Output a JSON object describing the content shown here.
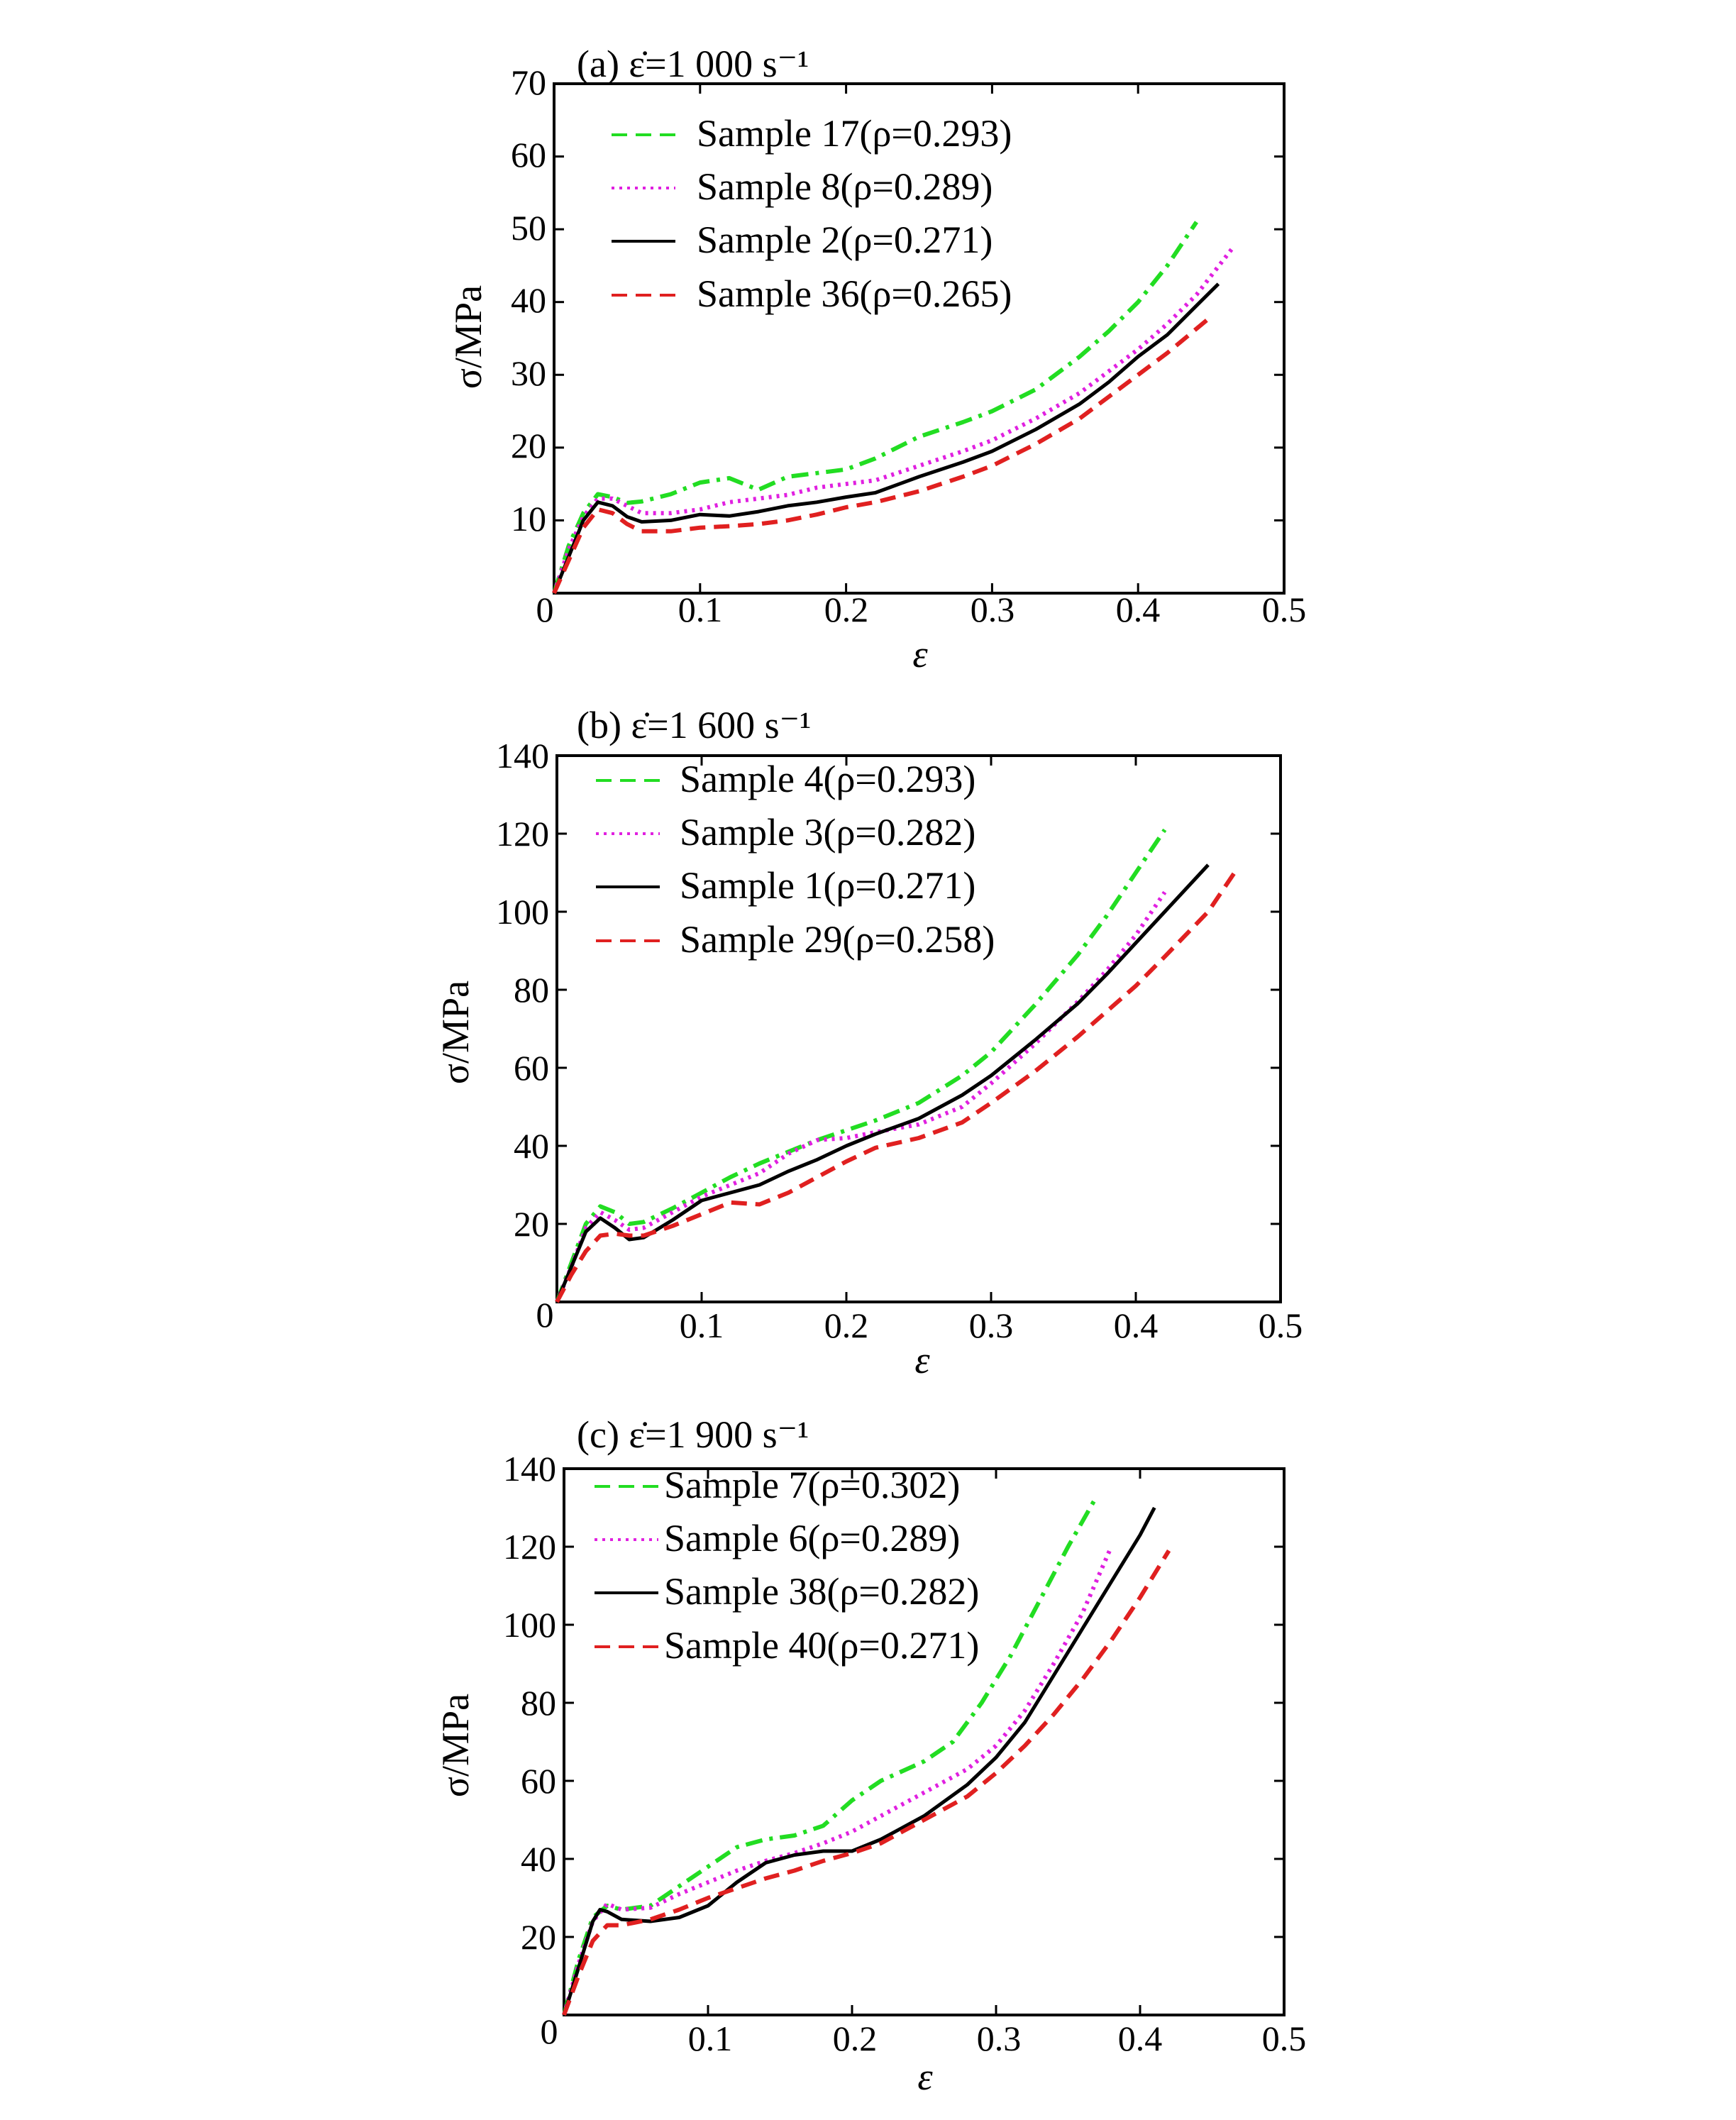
{
  "chart_data": [
    {
      "type": "line",
      "title": "(a) ε̇=1 000 s⁻¹",
      "xlabel": "ε",
      "ylabel": "σ/MPa",
      "xlim": [
        0,
        0.5
      ],
      "ylim": [
        0,
        70
      ],
      "xticks": [
        "0",
        "0.1",
        "0.2",
        "0.3",
        "0.4",
        "0.5"
      ],
      "yticks": [
        "0",
        "10",
        "20",
        "30",
        "40",
        "50",
        "60",
        "70"
      ],
      "grid": false,
      "legend_position": "top-left",
      "series": [
        {
          "name": "Sample 17(ρ=0.293)",
          "color": "#22dd22",
          "style": "dashdot",
          "x": [
            0,
            0.01,
            0.02,
            0.03,
            0.04,
            0.05,
            0.06,
            0.08,
            0.1,
            0.12,
            0.14,
            0.16,
            0.18,
            0.2,
            0.22,
            0.25,
            0.28,
            0.3,
            0.33,
            0.36,
            0.38,
            0.4,
            0.42,
            0.44
          ],
          "y": [
            0,
            6.5,
            11,
            13.6,
            13.2,
            12.4,
            12.6,
            13.6,
            15.2,
            15.8,
            14.2,
            16,
            16.5,
            17,
            18.5,
            21.5,
            23.5,
            25,
            28,
            32.5,
            36,
            40,
            45,
            51
          ]
        },
        {
          "name": "Sample 8(ρ=0.289)",
          "color": "#e020e0",
          "style": "dotted",
          "x": [
            0,
            0.01,
            0.02,
            0.03,
            0.04,
            0.05,
            0.06,
            0.08,
            0.1,
            0.12,
            0.14,
            0.16,
            0.18,
            0.2,
            0.22,
            0.25,
            0.28,
            0.3,
            0.33,
            0.36,
            0.38,
            0.4,
            0.42,
            0.44,
            0.465
          ],
          "y": [
            0,
            6,
            10.5,
            13,
            13,
            12,
            11,
            11,
            11.5,
            12.5,
            13,
            13.5,
            14.5,
            15,
            15.5,
            17.5,
            19.5,
            21,
            24,
            27.5,
            30.5,
            33.5,
            37,
            41,
            47.5
          ]
        },
        {
          "name": "Sample 2(ρ=0.271)",
          "color": "#000000",
          "style": "solid",
          "x": [
            0,
            0.01,
            0.02,
            0.03,
            0.04,
            0.05,
            0.06,
            0.08,
            0.1,
            0.12,
            0.14,
            0.16,
            0.18,
            0.2,
            0.22,
            0.25,
            0.28,
            0.3,
            0.33,
            0.36,
            0.38,
            0.4,
            0.42,
            0.44,
            0.455
          ],
          "y": [
            0,
            5,
            10,
            12.5,
            12,
            10.5,
            9.8,
            10,
            10.8,
            10.6,
            11.2,
            12,
            12.5,
            13.2,
            13.8,
            16,
            18,
            19.5,
            22.5,
            26,
            29,
            32.5,
            35.5,
            39.5,
            42.5
          ]
        },
        {
          "name": "Sample 36(ρ=0.265)",
          "color": "#e02020",
          "style": "dashed",
          "x": [
            0,
            0.01,
            0.02,
            0.03,
            0.04,
            0.05,
            0.06,
            0.08,
            0.1,
            0.12,
            0.14,
            0.16,
            0.18,
            0.2,
            0.22,
            0.25,
            0.28,
            0.3,
            0.33,
            0.36,
            0.38,
            0.4,
            0.42,
            0.45
          ],
          "y": [
            0,
            4.5,
            9,
            11.5,
            11,
            9.5,
            8.5,
            8.5,
            9,
            9.2,
            9.5,
            10,
            10.8,
            11.8,
            12.5,
            14,
            16,
            17.5,
            20.5,
            24,
            27,
            30,
            33,
            38
          ]
        }
      ]
    },
    {
      "type": "line",
      "title": "(b) ε̇=1 600 s⁻¹",
      "xlabel": "ε",
      "ylabel": "σ/MPa",
      "xlim": [
        0,
        0.5
      ],
      "ylim": [
        0,
        140
      ],
      "xticks": [
        "0",
        "0.1",
        "0.2",
        "0.3",
        "0.4",
        "0.5"
      ],
      "yticks": [
        "0",
        "20",
        "40",
        "60",
        "80",
        "100",
        "120",
        "140"
      ],
      "grid": false,
      "legend_position": "top-left",
      "series": [
        {
          "name": "Sample 4(ρ=0.293)",
          "color": "#22dd22",
          "style": "dashdot",
          "x": [
            0,
            0.01,
            0.02,
            0.03,
            0.04,
            0.05,
            0.06,
            0.08,
            0.1,
            0.12,
            0.14,
            0.16,
            0.18,
            0.2,
            0.22,
            0.25,
            0.28,
            0.3,
            0.33,
            0.36,
            0.38,
            0.4,
            0.42
          ],
          "y": [
            0,
            10,
            20,
            24.5,
            23,
            20,
            20.5,
            24,
            28,
            32,
            35.5,
            38.5,
            41.5,
            44,
            46.5,
            51,
            58,
            64,
            76,
            89,
            99,
            110,
            121
          ]
        },
        {
          "name": "Sample 3(ρ=0.282)",
          "color": "#e020e0",
          "style": "dotted",
          "x": [
            0,
            0.01,
            0.02,
            0.03,
            0.04,
            0.05,
            0.06,
            0.08,
            0.1,
            0.12,
            0.14,
            0.16,
            0.18,
            0.2,
            0.22,
            0.25,
            0.28,
            0.3,
            0.33,
            0.36,
            0.38,
            0.4,
            0.42
          ],
          "y": [
            0,
            9,
            19,
            23,
            21,
            18.5,
            19,
            23,
            27,
            30,
            33,
            38,
            41.5,
            42,
            43.5,
            45.5,
            50,
            56,
            66,
            77,
            85,
            94,
            105
          ]
        },
        {
          "name": "Sample 1(ρ=0.271)",
          "color": "#000000",
          "style": "solid",
          "x": [
            0,
            0.01,
            0.02,
            0.03,
            0.04,
            0.05,
            0.06,
            0.08,
            0.1,
            0.12,
            0.14,
            0.16,
            0.18,
            0.2,
            0.22,
            0.25,
            0.28,
            0.3,
            0.33,
            0.36,
            0.38,
            0.4,
            0.42,
            0.45
          ],
          "y": [
            0,
            9,
            18,
            21.5,
            19,
            16,
            16.5,
            21,
            26,
            28,
            30,
            33.5,
            36.5,
            40,
            43,
            47,
            53,
            58,
            67,
            76.5,
            84,
            92,
            100,
            112
          ]
        },
        {
          "name": "Sample 29(ρ=0.258)",
          "color": "#e02020",
          "style": "dashed",
          "x": [
            0,
            0.01,
            0.02,
            0.03,
            0.04,
            0.05,
            0.06,
            0.08,
            0.1,
            0.12,
            0.14,
            0.16,
            0.18,
            0.2,
            0.22,
            0.25,
            0.28,
            0.3,
            0.33,
            0.36,
            0.38,
            0.4,
            0.42,
            0.45,
            0.47
          ],
          "y": [
            0,
            7,
            13,
            17,
            17.5,
            17,
            17,
            19.5,
            22.5,
            25.5,
            25,
            28,
            32,
            36,
            39.5,
            42,
            46,
            51,
            59,
            68,
            74.5,
            81,
            88.5,
            100,
            111
          ]
        }
      ]
    },
    {
      "type": "line",
      "title": "(c) ε̇=1 900 s⁻¹",
      "xlabel": "ε",
      "ylabel": "σ/MPa",
      "xlim": [
        0,
        0.5
      ],
      "ylim": [
        0,
        140
      ],
      "xticks": [
        "0",
        "0.1",
        "0.2",
        "0.3",
        "0.4",
        "0.5"
      ],
      "yticks": [
        "0",
        "20",
        "40",
        "60",
        "80",
        "100",
        "120",
        "140"
      ],
      "grid": false,
      "legend_position": "top-left",
      "series": [
        {
          "name": "Sample 7(ρ=0.302)",
          "color": "#22dd22",
          "style": "dashdot",
          "x": [
            0,
            0.01,
            0.02,
            0.03,
            0.04,
            0.06,
            0.08,
            0.1,
            0.12,
            0.14,
            0.16,
            0.18,
            0.2,
            0.22,
            0.25,
            0.27,
            0.29,
            0.31,
            0.33,
            0.35,
            0.37
          ],
          "y": [
            0,
            14,
            25,
            28,
            27,
            28,
            33,
            38,
            43,
            45,
            46,
            48.5,
            55,
            60,
            65,
            70,
            80,
            92,
            106,
            120,
            133
          ]
        },
        {
          "name": "Sample 6(ρ=0.289)",
          "color": "#e020e0",
          "style": "dotted",
          "x": [
            0,
            0.01,
            0.02,
            0.03,
            0.04,
            0.06,
            0.08,
            0.1,
            0.12,
            0.14,
            0.16,
            0.18,
            0.2,
            0.22,
            0.25,
            0.28,
            0.3,
            0.32,
            0.34,
            0.36,
            0.38
          ],
          "y": [
            0,
            13,
            24,
            28.5,
            27,
            27.5,
            31,
            34,
            37,
            39.5,
            41.5,
            44,
            47,
            51,
            57,
            63,
            69,
            78,
            90,
            103,
            120
          ]
        },
        {
          "name": "Sample 38(ρ=0.282)",
          "color": "#000000",
          "style": "solid",
          "x": [
            0,
            0.01,
            0.02,
            0.025,
            0.03,
            0.04,
            0.06,
            0.08,
            0.1,
            0.12,
            0.14,
            0.16,
            0.18,
            0.2,
            0.22,
            0.25,
            0.28,
            0.3,
            0.32,
            0.34,
            0.36,
            0.38,
            0.4,
            0.41
          ],
          "y": [
            0,
            12,
            24,
            27,
            26.5,
            24.5,
            24,
            25,
            28,
            34,
            39,
            41,
            42,
            42,
            45,
            51,
            59,
            66,
            75,
            87,
            99,
            111,
            123,
            130
          ]
        },
        {
          "name": "Sample 40(ρ=0.271)",
          "color": "#e02020",
          "style": "dashed",
          "x": [
            0,
            0.01,
            0.02,
            0.03,
            0.04,
            0.06,
            0.08,
            0.1,
            0.12,
            0.14,
            0.16,
            0.18,
            0.2,
            0.22,
            0.25,
            0.28,
            0.3,
            0.32,
            0.34,
            0.36,
            0.38,
            0.4,
            0.42
          ],
          "y": [
            0,
            10,
            19,
            23,
            23,
            24.5,
            27,
            30,
            32.5,
            35,
            37,
            39.5,
            41.5,
            44,
            50,
            56,
            62,
            69,
            77,
            86,
            96,
            107,
            119
          ]
        }
      ]
    }
  ]
}
